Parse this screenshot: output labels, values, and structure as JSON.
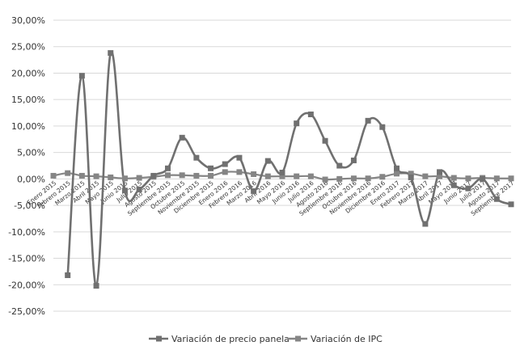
{
  "chart_data": {
    "type": "line",
    "title": "",
    "xlabel": "",
    "ylabel": "",
    "ylim": [
      -25,
      30
    ],
    "yticks": [
      30,
      25,
      20,
      15,
      10,
      5,
      0,
      -5,
      -10,
      -15,
      -20,
      -25
    ],
    "ytick_labels": [
      "30,00%",
      "25,00%",
      "20,00%",
      "15,00%",
      "10,00%",
      "5,00%",
      "0,00%",
      "-5,00%",
      "-10,00%",
      "-15,00%",
      "-20,00%",
      "-25,00%"
    ],
    "grid": true,
    "legend_position": "bottom",
    "categories": [
      "Enero 2015",
      "Febrero 2015",
      "Marzo 2015",
      "Abril 2015",
      "Mayo 2015",
      "Junio 2015",
      "Julio 2015",
      "Agosto 2015",
      "Septiembre 2015",
      "Octubre 2015",
      "Noviembre 2015",
      "Diciembre 2015",
      "Enero 2016",
      "Febrero 2016",
      "Marzo 2016",
      "Abril 2016",
      "Mayo 2016",
      "Junio 2016",
      "Julio 2016",
      "Agosto 2016",
      "Septiembre 2016",
      "Octubre 2016",
      "Noviembre 2016",
      "Diciembre 2016",
      "Enero 2017",
      "Febrero 2017",
      "Marzo 2017",
      "Abril 2017",
      "Mayo 2017",
      "Junio 2017",
      "Julio 2017",
      "Agosto 2017",
      "Septiembre 2017"
    ],
    "series": [
      {
        "name": "Variación de precio panela",
        "color": "#707070",
        "values": [
          null,
          -18.2,
          19.5,
          -20.2,
          23.8,
          -2.2,
          -2.0,
          0.6,
          2.0,
          7.8,
          4.0,
          2.0,
          2.8,
          4.0,
          -2.3,
          3.4,
          1.2,
          10.5,
          12.2,
          7.2,
          2.5,
          3.5,
          11.0,
          9.8,
          2.0,
          0.3,
          -8.5,
          1.3,
          -1.2,
          -1.8,
          0.0,
          -3.8,
          -4.8
        ]
      },
      {
        "name": "Variación de IPC",
        "color": "#858585",
        "values": [
          0.6,
          1.1,
          0.6,
          0.5,
          0.3,
          0.1,
          0.2,
          0.4,
          0.7,
          0.7,
          0.6,
          0.6,
          1.3,
          1.3,
          0.9,
          0.5,
          0.5,
          0.5,
          0.5,
          -0.1,
          0.0,
          0.1,
          0.1,
          0.4,
          1.0,
          1.0,
          0.5,
          0.5,
          0.2,
          0.1,
          0.2,
          0.1,
          0.1
        ]
      }
    ]
  }
}
